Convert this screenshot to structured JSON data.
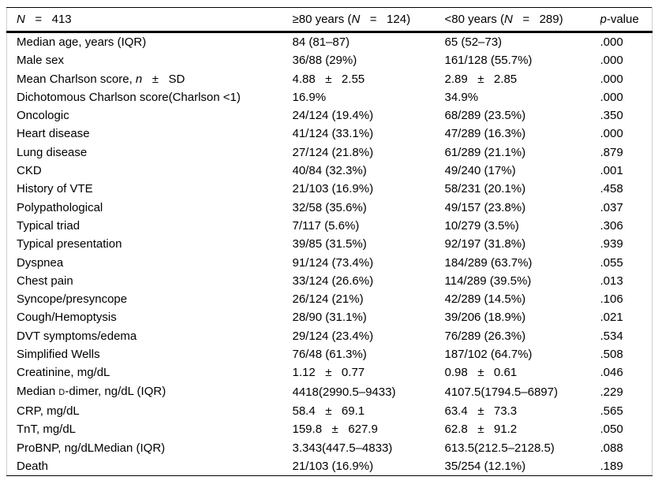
{
  "table": {
    "title_semantic": "Comparison of patients aged >=80 years versus <80 years",
    "header": {
      "col_label": {
        "pre": "",
        "italic": "N",
        "post": "   =   413"
      },
      "col_ge80": {
        "pre": "≥80 years (",
        "italic": "N",
        "post": "   =   124)"
      },
      "col_lt80": {
        "pre": "<80 years (",
        "italic": "N",
        "post": "   =   289)"
      },
      "col_p": {
        "pre": "",
        "italic": "p",
        "post": "-value"
      }
    },
    "rows": [
      {
        "label": "Median age, years (IQR)",
        "ge80": "84 (81–87)",
        "lt80": "65 (52–73)",
        "p": ".000"
      },
      {
        "label": "Male sex",
        "ge80": "36/88 (29%)",
        "lt80": "161/128 (55.7%)",
        "p": ".000"
      },
      {
        "label_pre": "Mean Charlson score, ",
        "label_it": "n",
        "label_post": "   ±   SD",
        "ge80": "4.88   ±   2.55",
        "lt80": "2.89   ±   2.85",
        "p": ".000"
      },
      {
        "label": "Dichotomous Charlson score(Charlson <1)",
        "ge80": "16.9%",
        "lt80": "34.9%",
        "p": ".000"
      },
      {
        "label": "Oncologic",
        "ge80": "24/124 (19.4%)",
        "lt80": "68/289 (23.5%)",
        "p": ".350"
      },
      {
        "label": "Heart disease",
        "ge80": "41/124 (33.1%)",
        "lt80": "47/289 (16.3%)",
        "p": ".000"
      },
      {
        "label": "Lung disease",
        "ge80": "27/124 (21.8%)",
        "lt80": "61/289 (21.1%)",
        "p": ".879"
      },
      {
        "label": "CKD",
        "ge80": "40/84 (32.3%)",
        "lt80": "49/240 (17%)",
        "p": ".001"
      },
      {
        "label": "History of VTE",
        "ge80": "21/103 (16.9%)",
        "lt80": "58/231 (20.1%)",
        "p": ".458"
      },
      {
        "label": "Polypathological",
        "ge80": "32/58 (35.6%)",
        "lt80": "49/157 (23.8%)",
        "p": ".037"
      },
      {
        "label": "Typical triad",
        "ge80": "7/117 (5.6%)",
        "lt80": "10/279 (3.5%)",
        "p": ".306"
      },
      {
        "label": "Typical presentation",
        "ge80": "39/85 (31.5%)",
        "lt80": "92/197 (31.8%)",
        "p": ".939"
      },
      {
        "label": "Dyspnea",
        "ge80": "91/124 (73.4%)",
        "lt80": "184/289 (63.7%)",
        "p": ".055"
      },
      {
        "label": "Chest pain",
        "ge80": "33/124 (26.6%)",
        "lt80": "114/289 (39.5%)",
        "p": ".013"
      },
      {
        "label": "Syncope/presyncope",
        "ge80": "26/124 (21%)",
        "lt80": "42/289 (14.5%)",
        "p": ".106"
      },
      {
        "label": "Cough/Hemoptysis",
        "ge80": "28/90 (31.1%)",
        "lt80": "39/206 (18.9%)",
        "p": ".021"
      },
      {
        "label": "DVT symptoms/edema",
        "ge80": "29/124 (23.4%)",
        "lt80": "76/289 (26.3%)",
        "p": ".534"
      },
      {
        "label": "Simplified Wells",
        "ge80": "76/48 (61.3%)",
        "lt80": "187/102 (64.7%)",
        "p": ".508"
      },
      {
        "label": "Creatinine, mg/dL",
        "ge80": "1.12   ±   0.77",
        "lt80": "0.98   ±   0.61",
        "p": ".046"
      },
      {
        "label_pre": "Median ",
        "label_sc": "D",
        "label_post": "-dimer, ng/dL (IQR)",
        "ge80": "4418(2990.5–9433)",
        "lt80": "4107.5(1794.5–6897)",
        "p": ".229"
      },
      {
        "label": "CRP, mg/dL",
        "ge80": "58.4   ±   69.1",
        "lt80": "63.4   ±   73.3",
        "p": ".565"
      },
      {
        "label": "TnT, mg/dL",
        "ge80": "159.8   ±   627.9",
        "lt80": "62.8   ±   91.2",
        "p": ".050"
      },
      {
        "label": "ProBNP, ng/dLMedian (IQR)",
        "ge80": "3.343(447.5–4833)",
        "lt80": "613.5(212.5–2128.5)",
        "p": ".088"
      },
      {
        "label": "Death",
        "ge80": "21/103 (16.9%)",
        "lt80": "35/254 (12.1%)",
        "p": ".189"
      }
    ],
    "colors": {
      "text": "#000000",
      "background": "#ffffff",
      "rule_strong": "#000000",
      "rule_light": "#cfcfcf"
    }
  }
}
